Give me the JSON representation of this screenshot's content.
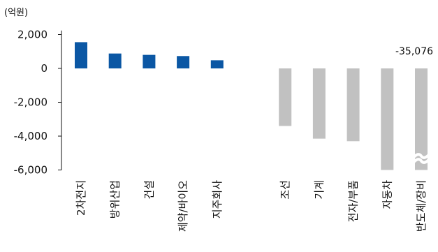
{
  "chart_data": {
    "type": "bar",
    "unit_label": "(억원)",
    "categories": [
      "2차전지",
      "방위산업",
      "건설",
      "제약/바이오",
      "지주회사",
      "",
      "조선",
      "기계",
      "전자/부품",
      "자동차",
      "반도체/장비"
    ],
    "values": [
      1550,
      880,
      800,
      730,
      480,
      null,
      -3400,
      -4150,
      -4300,
      -6000,
      -6000
    ],
    "colors": [
      "#0b57a4",
      "#0b57a4",
      "#0b57a4",
      "#0b57a4",
      "#0b57a4",
      null,
      "#c1c1c1",
      "#c1c1c1",
      "#c1c1c1",
      "#c1c1c1",
      "#c1c1c1"
    ],
    "actual_value_note": "-35,076",
    "truncated_category": "반도체/장비",
    "yticks": [
      2000,
      0,
      -2000,
      -4000,
      -6000
    ],
    "ytick_labels": [
      "2,000",
      "0",
      "-2,000",
      "-4,000",
      "-6,000"
    ],
    "ylim": [
      -6000,
      2400
    ],
    "grid": false,
    "legend": "none"
  }
}
